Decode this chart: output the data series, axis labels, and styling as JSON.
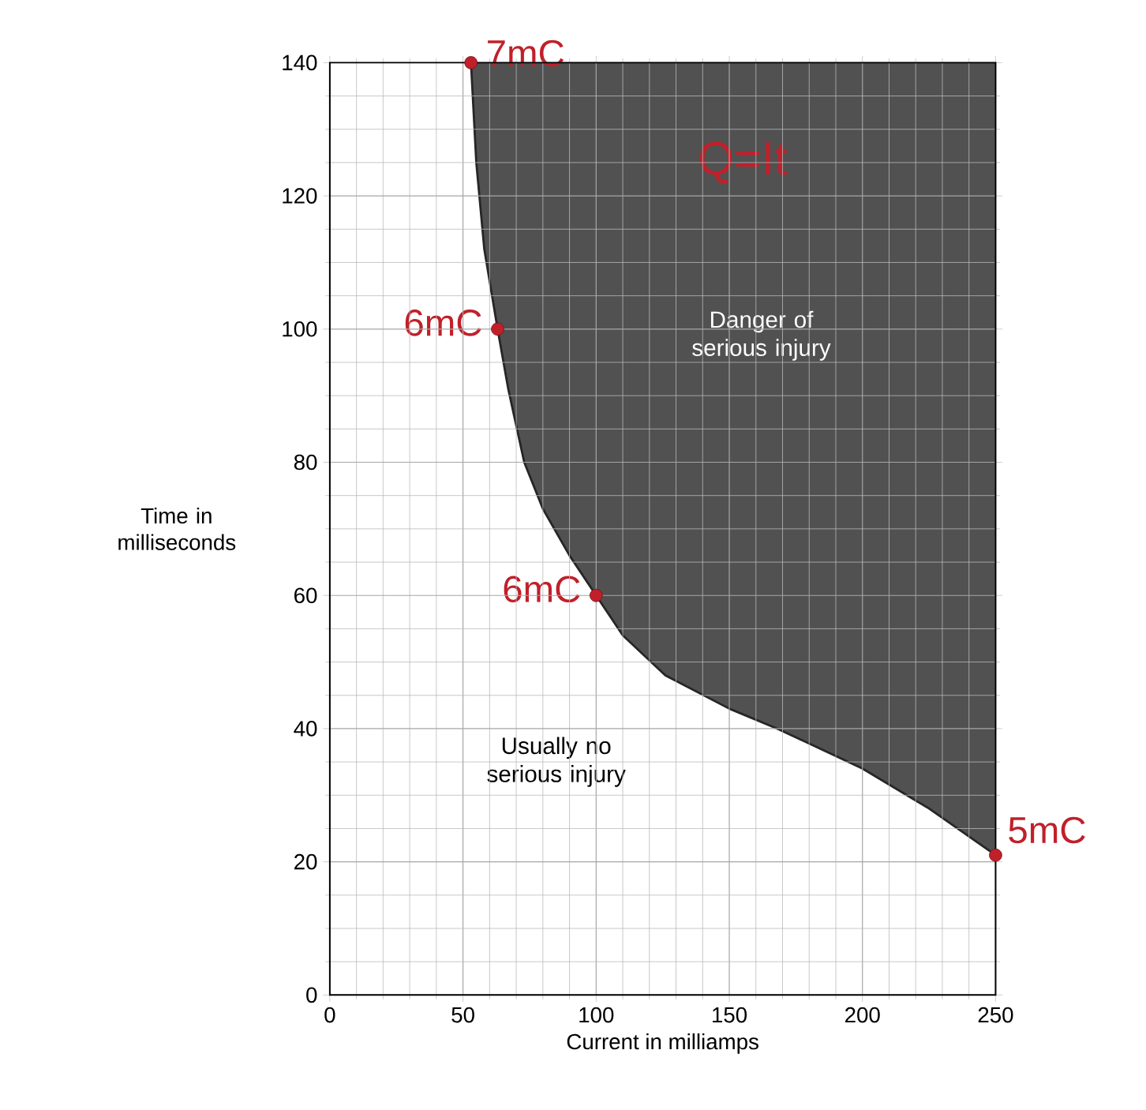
{
  "chart_data": {
    "type": "line",
    "xlabel": "Current in milliamps",
    "ylabel": "Time in milliseconds",
    "xlim": [
      0,
      250
    ],
    "ylim": [
      0,
      140
    ],
    "xticks": [
      0,
      50,
      100,
      150,
      200,
      250
    ],
    "yticks": [
      0,
      20,
      40,
      60,
      80,
      100,
      120,
      140
    ],
    "grid": true,
    "series": [
      {
        "color": "#262626",
        "x": [
          53,
          55,
          58,
          63,
          67,
          73,
          80,
          90,
          100,
          110,
          126,
          150,
          168,
          200,
          225,
          250
        ],
        "values": [
          140,
          125,
          112,
          100,
          91,
          80,
          73,
          66,
          60,
          54,
          48,
          43,
          40,
          34,
          28,
          21
        ],
        "lower": [
          140,
          125,
          112,
          100,
          91,
          80,
          73,
          66,
          60,
          54,
          48,
          43,
          40,
          34,
          28,
          21
        ],
        "upper": [
          140,
          140,
          140,
          140,
          140,
          140,
          140,
          140,
          140,
          140,
          140,
          140,
          140,
          140,
          140,
          140
        ]
      },
      {
        "type": "scatter",
        "color": "#c0202a",
        "marker": "circle",
        "x": [
          53,
          63,
          100,
          250
        ],
        "values": [
          140,
          100,
          60,
          21
        ]
      }
    ],
    "annotations": [
      {
        "text": "7mC",
        "x": 53,
        "y": 140
      },
      {
        "text": "6mC",
        "x": 63,
        "y": 100
      },
      {
        "text": "6mC",
        "x": 100,
        "y": 60
      },
      {
        "text": "5mC",
        "x": 250,
        "y": 21
      },
      "Q=It",
      "Danger of serious injury",
      "Usually no serious injury"
    ]
  }
}
